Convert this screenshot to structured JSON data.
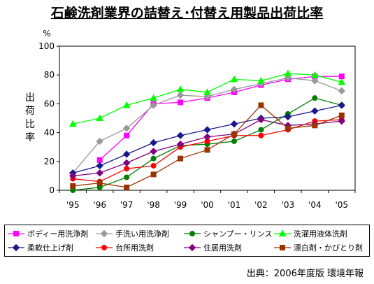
{
  "chart_data": {
    "type": "line",
    "title": "石鹸洗剤業界の詰替え･付替え用製品出荷比率",
    "ylabel": "出荷比率",
    "yunit": "%",
    "xlabel": "",
    "categories": [
      "'95",
      "'96",
      "'97",
      "'98",
      "'99",
      "'00",
      "'01",
      "'02",
      "'03",
      "'04",
      "'05"
    ],
    "ylim": [
      0,
      100
    ],
    "yticks": [
      0,
      20,
      40,
      60,
      80,
      100
    ],
    "grid": false,
    "legend_position": "bottom",
    "series": [
      {
        "name": "ボディー用洗浄剤",
        "color": "#ff00ff",
        "marker": "square",
        "start": 1,
        "values": [
          null,
          21,
          38,
          60,
          61,
          64,
          68,
          73,
          77,
          79,
          79
        ]
      },
      {
        "name": "手洗い用洗浄剤",
        "color": "#999999",
        "marker": "diamond",
        "start": 0,
        "values": [
          12,
          34,
          43,
          59,
          66,
          65,
          70,
          74,
          78,
          76,
          69
        ]
      },
      {
        "name": "シャンプー・リンス",
        "color": "#008000",
        "marker": "circle",
        "start": 0,
        "values": [
          0,
          2,
          9,
          22,
          31,
          32,
          34,
          42,
          53,
          64,
          59
        ]
      },
      {
        "name": "洗濯用液体洗剤",
        "color": "#00ff00",
        "marker": "triangle",
        "start": 0,
        "values": [
          46,
          50,
          59,
          64,
          70,
          68,
          77,
          76,
          81,
          80,
          75
        ]
      },
      {
        "name": "柔軟仕上げ剤",
        "color": "#1a1a8c",
        "marker": "diamond",
        "start": 0,
        "values": [
          12,
          17,
          25,
          33,
          38,
          42,
          46,
          50,
          51,
          55,
          59
        ]
      },
      {
        "name": "台所用洗剤",
        "color": "#ff0000",
        "marker": "circle",
        "start": 0,
        "values": [
          8,
          6,
          15,
          17,
          30,
          34,
          38,
          38,
          42,
          48,
          49
        ]
      },
      {
        "name": "住居用洗剤",
        "color": "#800080",
        "marker": "diamond",
        "start": 0,
        "values": [
          10,
          12,
          19,
          27,
          32,
          37,
          39,
          49,
          45,
          46,
          48
        ]
      },
      {
        "name": "漂白剤・かびとり剤",
        "color": "#993300",
        "marker": "square",
        "start": 0,
        "values": [
          3,
          5,
          2,
          11,
          22,
          28,
          39,
          59,
          43,
          45,
          52
        ]
      }
    ]
  },
  "source": "出典：2006年度版 環境年報"
}
